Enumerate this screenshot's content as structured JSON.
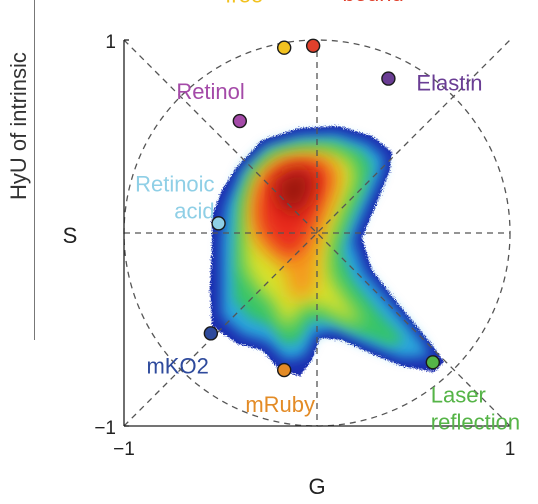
{
  "side_title": "HyU of intrinsic",
  "chart_data": {
    "type": "scatter",
    "subtype": "phasor-density",
    "title": "",
    "xlabel": "G",
    "ylabel": "S",
    "xlim": [
      -1,
      1
    ],
    "ylim": [
      -1,
      1
    ],
    "xticks": [
      "−1",
      "1"
    ],
    "yticks": [
      "1",
      "−1"
    ],
    "grid": false,
    "reference_lines": [
      "unit circle (dashed)",
      "diagonals (dashed)",
      "axes through origin (dashed)"
    ],
    "colormap": [
      "#1a2fb4",
      "#29a6dd",
      "#2ec46e",
      "#d9e22a",
      "#f59a1c",
      "#e8291c",
      "#9c1410"
    ],
    "points": [
      {
        "label": "NADH-\nfree",
        "x": -0.17,
        "y": 0.96,
        "color": "#f2c220"
      },
      {
        "label": "NADH-\nbound",
        "x": -0.02,
        "y": 0.97,
        "color": "#e0402c"
      },
      {
        "label": "Retinol",
        "x": -0.4,
        "y": 0.58,
        "color": "#a44aa8"
      },
      {
        "label": "Retinoic\nacid",
        "x": -0.51,
        "y": 0.05,
        "color": "#8fcfe6"
      },
      {
        "label": "Elastin",
        "x": 0.37,
        "y": 0.8,
        "color": "#6a3d94"
      },
      {
        "label": "mKO2",
        "x": -0.55,
        "y": -0.52,
        "color": "#2e4a9c"
      },
      {
        "label": "mRuby",
        "x": -0.17,
        "y": -0.71,
        "color": "#e38b26"
      },
      {
        "label": "Laser\nreflection",
        "x": 0.6,
        "y": -0.67,
        "color": "#55b447"
      }
    ]
  }
}
